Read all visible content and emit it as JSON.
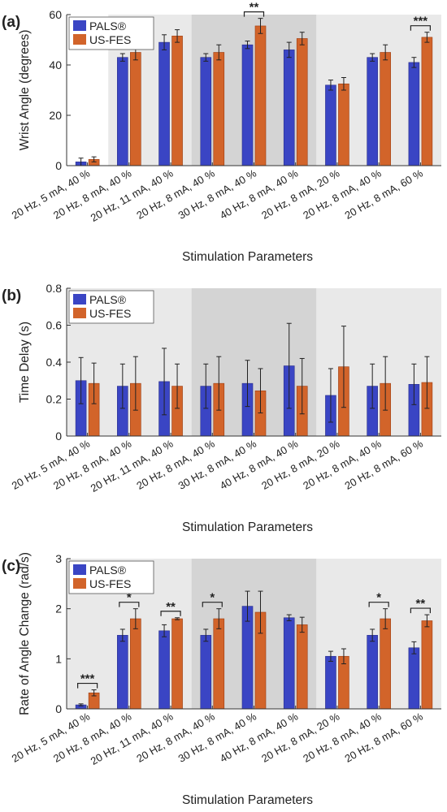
{
  "colors": {
    "pals": "#3a45c4",
    "usfes": "#d2642a",
    "band_light": "#e9e9e9",
    "band_dark": "#d4d4d4",
    "axis": "#333333"
  },
  "chart_data": [
    {
      "panel_label": "(a)",
      "type": "bar",
      "xlabel": "Stimulation Parameters",
      "ylabel": "Wrist Angle (degrees)",
      "ylim": [
        0,
        60
      ],
      "yticks": [
        0,
        20,
        40,
        60
      ],
      "categories": [
        "20 Hz, 5 mA, 40 %",
        "20 Hz, 8 mA, 40 %",
        "20 Hz, 11 mA, 40 %",
        "20 Hz, 8 mA, 40 %",
        "30 Hz, 8 mA, 40 %",
        "40 Hz, 8 mA, 40 %",
        "20 Hz, 8 mA, 20 %",
        "20 Hz, 8 mA, 40 %",
        "20 Hz, 8 mA, 60 %"
      ],
      "bands": [
        {
          "from": 1,
          "to": 3,
          "shade": "light"
        },
        {
          "from": 3,
          "to": 6,
          "shade": "dark"
        },
        {
          "from": 6,
          "to": 9,
          "shade": "light"
        }
      ],
      "legend": {
        "placement": "top-left",
        "entries": [
          "PALS®",
          "US-FES"
        ]
      },
      "series": [
        {
          "name": "PALS®",
          "values": [
            1.5,
            43,
            49,
            43,
            48,
            46,
            32,
            43,
            41
          ],
          "errors": [
            1.5,
            1.5,
            3,
            1.5,
            1.5,
            3,
            2,
            1.5,
            2
          ]
        },
        {
          "name": "US-FES",
          "values": [
            2.5,
            45,
            51.5,
            45,
            55.5,
            50.5,
            32.5,
            45,
            51
          ],
          "errors": [
            1,
            3,
            2.5,
            3,
            3,
            2.5,
            2.5,
            3,
            2
          ]
        }
      ],
      "significance": [
        {
          "category": 4,
          "label": "**"
        },
        {
          "category": 8,
          "label": "***"
        }
      ]
    },
    {
      "panel_label": "(b)",
      "type": "bar",
      "xlabel": "Stimulation Parameters",
      "ylabel": "Time Delay (s)",
      "ylim": [
        0,
        0.8
      ],
      "yticks": [
        0,
        0.2,
        0.4,
        0.6,
        0.8
      ],
      "categories": [
        "20 Hz, 5 mA, 40 %",
        "20 Hz, 8 mA, 40 %",
        "20 Hz, 11 mA, 40 %",
        "20 Hz, 8 mA, 40 %",
        "30 Hz, 8 mA, 40 %",
        "40 Hz, 8 mA, 40 %",
        "20 Hz, 8 mA, 20 %",
        "20 Hz, 8 mA, 40 %",
        "20 Hz, 8 mA, 60 %"
      ],
      "bands": [
        {
          "from": 0,
          "to": 3,
          "shade": "light"
        },
        {
          "from": 3,
          "to": 6,
          "shade": "dark"
        },
        {
          "from": 6,
          "to": 9,
          "shade": "light"
        }
      ],
      "legend": {
        "placement": "top-left",
        "entries": [
          "PALS®",
          "US-FES"
        ]
      },
      "series": [
        {
          "name": "PALS®",
          "values": [
            0.3,
            0.27,
            0.295,
            0.27,
            0.285,
            0.38,
            0.22,
            0.27,
            0.28
          ],
          "errors": [
            0.125,
            0.12,
            0.18,
            0.12,
            0.125,
            0.23,
            0.145,
            0.12,
            0.11
          ]
        },
        {
          "name": "US-FES",
          "values": [
            0.285,
            0.285,
            0.27,
            0.285,
            0.245,
            0.27,
            0.375,
            0.285,
            0.29
          ],
          "errors": [
            0.11,
            0.145,
            0.12,
            0.145,
            0.12,
            0.15,
            0.22,
            0.145,
            0.14
          ]
        }
      ],
      "significance": []
    },
    {
      "panel_label": "(c)",
      "type": "bar",
      "xlabel": "Stimulation Parameters",
      "ylabel": "Rate of Angle Change (rad/s)",
      "ylim": [
        0,
        3
      ],
      "yticks": [
        0,
        1,
        2,
        3
      ],
      "categories": [
        "20 Hz, 5 mA, 40 %",
        "20 Hz, 8 mA, 40 %",
        "20 Hz, 11 mA, 40 %",
        "20 Hz, 8 mA, 40 %",
        "30 Hz, 8 mA, 40 %",
        "40 Hz, 8 mA, 40 %",
        "20 Hz, 8 mA, 20 %",
        "20 Hz, 8 mA, 40 %",
        "20 Hz, 8 mA, 60 %"
      ],
      "bands": [
        {
          "from": 0,
          "to": 3,
          "shade": "light"
        },
        {
          "from": 3,
          "to": 6,
          "shade": "dark"
        },
        {
          "from": 6,
          "to": 9,
          "shade": "light"
        }
      ],
      "legend": {
        "placement": "top-left",
        "entries": [
          "PALS®",
          "US-FES"
        ]
      },
      "series": [
        {
          "name": "PALS®",
          "values": [
            0.08,
            1.47,
            1.56,
            1.47,
            2.05,
            1.82,
            1.05,
            1.47,
            1.22
          ],
          "errors": [
            0.02,
            0.12,
            0.12,
            0.12,
            0.3,
            0.06,
            0.1,
            0.12,
            0.12
          ]
        },
        {
          "name": "US-FES",
          "values": [
            0.32,
            1.8,
            1.8,
            1.8,
            1.93,
            1.68,
            1.05,
            1.8,
            1.76
          ],
          "errors": [
            0.06,
            0.2,
            0.02,
            0.2,
            0.42,
            0.15,
            0.15,
            0.2,
            0.12
          ]
        }
      ],
      "significance": [
        {
          "category": 0,
          "label": "***"
        },
        {
          "category": 1,
          "label": "*"
        },
        {
          "category": 2,
          "label": "**"
        },
        {
          "category": 3,
          "label": "*"
        },
        {
          "category": 7,
          "label": "*"
        },
        {
          "category": 8,
          "label": "**"
        }
      ]
    }
  ]
}
